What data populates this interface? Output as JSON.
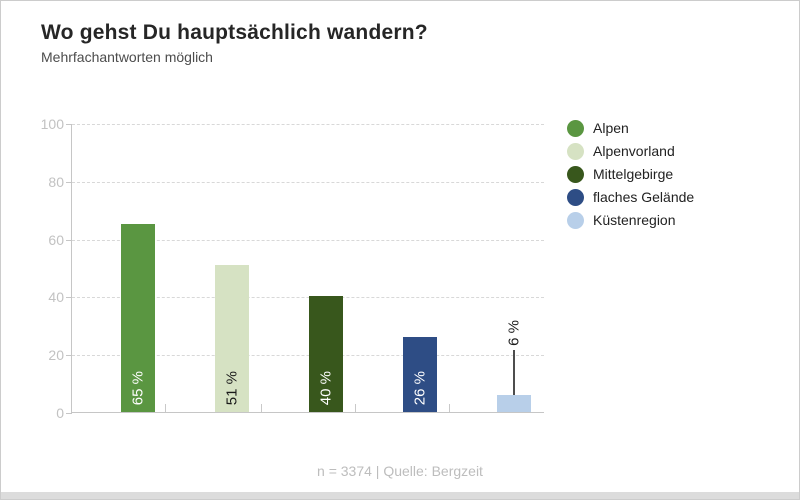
{
  "header": {
    "title": "Wo gehst Du hauptsächlich wandern?",
    "subtitle": "Mehrfachantworten möglich"
  },
  "footer": {
    "text": "n = 3374  | Quelle: Bergzeit"
  },
  "chart_data": {
    "type": "bar",
    "title": "Wo gehst Du hauptsächlich wandern?",
    "subtitle": "Mehrfachantworten möglich",
    "categories": [
      "Alpen",
      "Alpenvorland",
      "Mittelgebirge",
      "flaches Gelände",
      "Küstenregion"
    ],
    "values": [
      65,
      51,
      40,
      26,
      6
    ],
    "value_labels": [
      "65 %",
      "51 %",
      "40 %",
      "26 %",
      "6 %"
    ],
    "series_colors": [
      "#5a9641",
      "#d6e2c3",
      "#38571c",
      "#2e4d85",
      "#b8cfe9"
    ],
    "value_label_colors": [
      "#ffffff",
      "#1a1a1a",
      "#ffffff",
      "#ffffff",
      "#1a1a1a"
    ],
    "value_label_styles": [
      "inside",
      "inside",
      "inside",
      "inside",
      "callout"
    ],
    "xlabel": "",
    "ylabel": "",
    "ylim": [
      0,
      100
    ],
    "yticks": [
      0,
      20,
      40,
      60,
      80,
      100
    ],
    "grid": true,
    "grid_style": "dashed",
    "legend_position": "right",
    "legend": [
      {
        "label": "Alpen",
        "color": "#5a9641"
      },
      {
        "label": "Alpenvorland",
        "color": "#d6e2c3"
      },
      {
        "label": "Mittelgebirge",
        "color": "#38571c"
      },
      {
        "label": "flaches Gelände",
        "color": "#2e4d85"
      },
      {
        "label": "Küstenregion",
        "color": "#b8cfe9"
      }
    ],
    "source": "Quelle: Bergzeit",
    "sample_size": "n = 3374"
  }
}
